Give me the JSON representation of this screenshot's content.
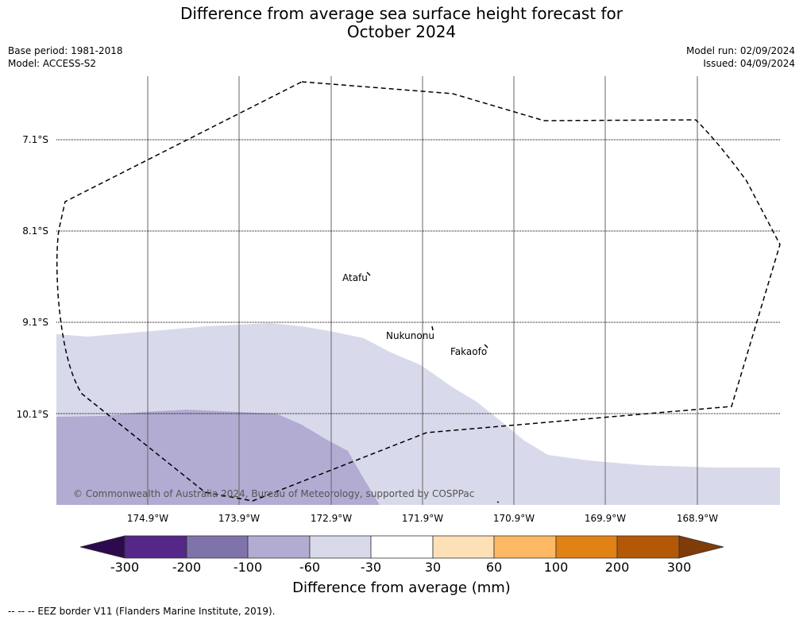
{
  "title": {
    "line1": "Difference from average sea surface height forecast for",
    "line2": "October 2024"
  },
  "meta_left": {
    "base_period": "Base period: 1981-2018",
    "model": "Model: ACCESS-S2"
  },
  "meta_right": {
    "model_run": "Model run: 02/09/2024",
    "issued": "Issued: 04/09/2024"
  },
  "lat_labels": [
    "7.1°S",
    "8.1°S",
    "9.1°S",
    "10.1°S"
  ],
  "lon_labels": [
    "174.9°W",
    "173.9°W",
    "172.9°W",
    "171.9°W",
    "170.9°W",
    "169.9°W",
    "168.9°W"
  ],
  "places": [
    "Atafu",
    "Nukunonu",
    "Fakaofo"
  ],
  "copyright": "© Commonwealth of Australia 2024, Bureau of Meteorology, supported by COSPPac",
  "colorbar": {
    "ticks": [
      "-300",
      "-200",
      "-100",
      "-60",
      "-30",
      "30",
      "60",
      "100",
      "200",
      "300"
    ],
    "colors": [
      "#2d0a4e",
      "#542788",
      "#8073ac",
      "#b2abd2",
      "#d8daeb",
      "#ffffff",
      "#fee0b6",
      "#fdb863",
      "#e08214",
      "#b35806",
      "#7f3b08"
    ],
    "title": "Difference from average (mm)"
  },
  "footer": "--  --  -- EEZ border V11 (Flanders Marine Institute, 2019).",
  "colors": {
    "anomaly_light": "#d8daeb",
    "anomaly_mid": "#b2abd2",
    "eez_line": "#000000",
    "grid": "#666666"
  }
}
